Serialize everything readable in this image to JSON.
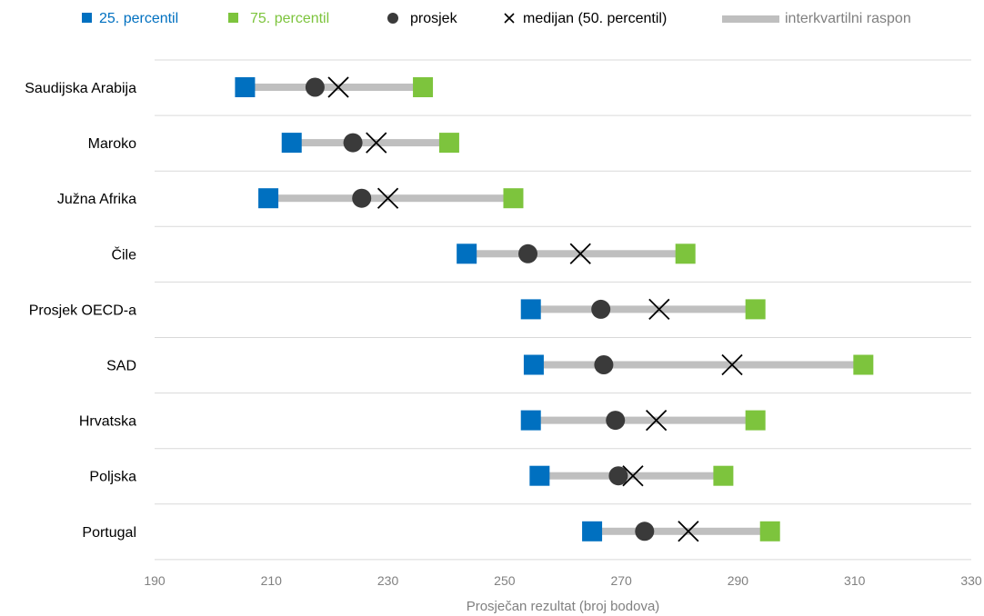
{
  "chart_data": {
    "type": "dot-range",
    "xlabel": "Prosječan rezultat (broj bodova)",
    "xlim": [
      190,
      330
    ],
    "xticks": [
      190,
      210,
      230,
      250,
      270,
      290,
      310,
      330
    ],
    "grid": "horizontal",
    "legend": "top",
    "legend_entries": {
      "p25": "25. percentil",
      "p75": "75. percentil",
      "mean": "prosjek",
      "median": "medijan (50. percentil)",
      "iqr": "interkvartilni  raspon"
    },
    "colors": {
      "p25": "#0070c0",
      "p75": "#7dc43d",
      "mean": "#3a3a3a",
      "median": "#000000",
      "iqr": "#bfbfbf",
      "grid": "#d9d9d9",
      "axis_text": "#808080"
    },
    "categories": [
      "Saudijska Arabija",
      "Maroko",
      "Južna Afrika",
      "Čile",
      "Prosjek OECD-a",
      "SAD",
      "Hrvatska",
      "Poljska",
      "Portugal"
    ],
    "p25": [
      205.5,
      213.5,
      209.5,
      243.5,
      254.5,
      255,
      254.5,
      256,
      265
    ],
    "p75": [
      236,
      240.5,
      251.5,
      281,
      293,
      311.5,
      293,
      287.5,
      295.5
    ],
    "mean": [
      217.5,
      224,
      225.5,
      254,
      266.5,
      267,
      269,
      269.5,
      274
    ],
    "median": [
      221.5,
      228,
      230,
      263,
      276.5,
      289,
      276,
      272,
      281.5
    ]
  }
}
